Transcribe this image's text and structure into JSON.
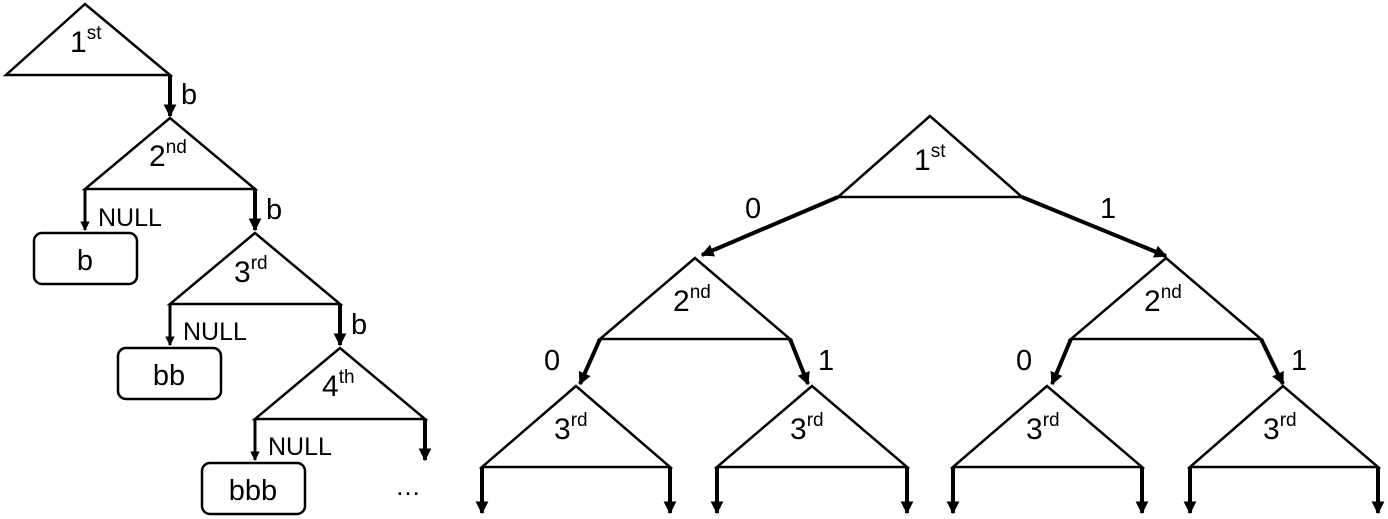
{
  "left_tree": {
    "nodes": [
      {
        "number": "1",
        "suffix": "st"
      },
      {
        "number": "2",
        "suffix": "nd"
      },
      {
        "number": "3",
        "suffix": "rd"
      },
      {
        "number": "4",
        "suffix": "th"
      }
    ],
    "edge_label": "b",
    "null_label": "NULL",
    "leaves": [
      "b",
      "bb",
      "bbb"
    ],
    "continuation": "…"
  },
  "right_tree": {
    "nodes": [
      {
        "number": "1",
        "suffix": "st"
      },
      {
        "number": "2",
        "suffix": "nd"
      },
      {
        "number": "2",
        "suffix": "nd"
      },
      {
        "number": "3",
        "suffix": "rd"
      },
      {
        "number": "3",
        "suffix": "rd"
      },
      {
        "number": "3",
        "suffix": "rd"
      },
      {
        "number": "3",
        "suffix": "rd"
      }
    ],
    "branch_labels": [
      "0",
      "1",
      "0",
      "1",
      "0",
      "1"
    ]
  }
}
